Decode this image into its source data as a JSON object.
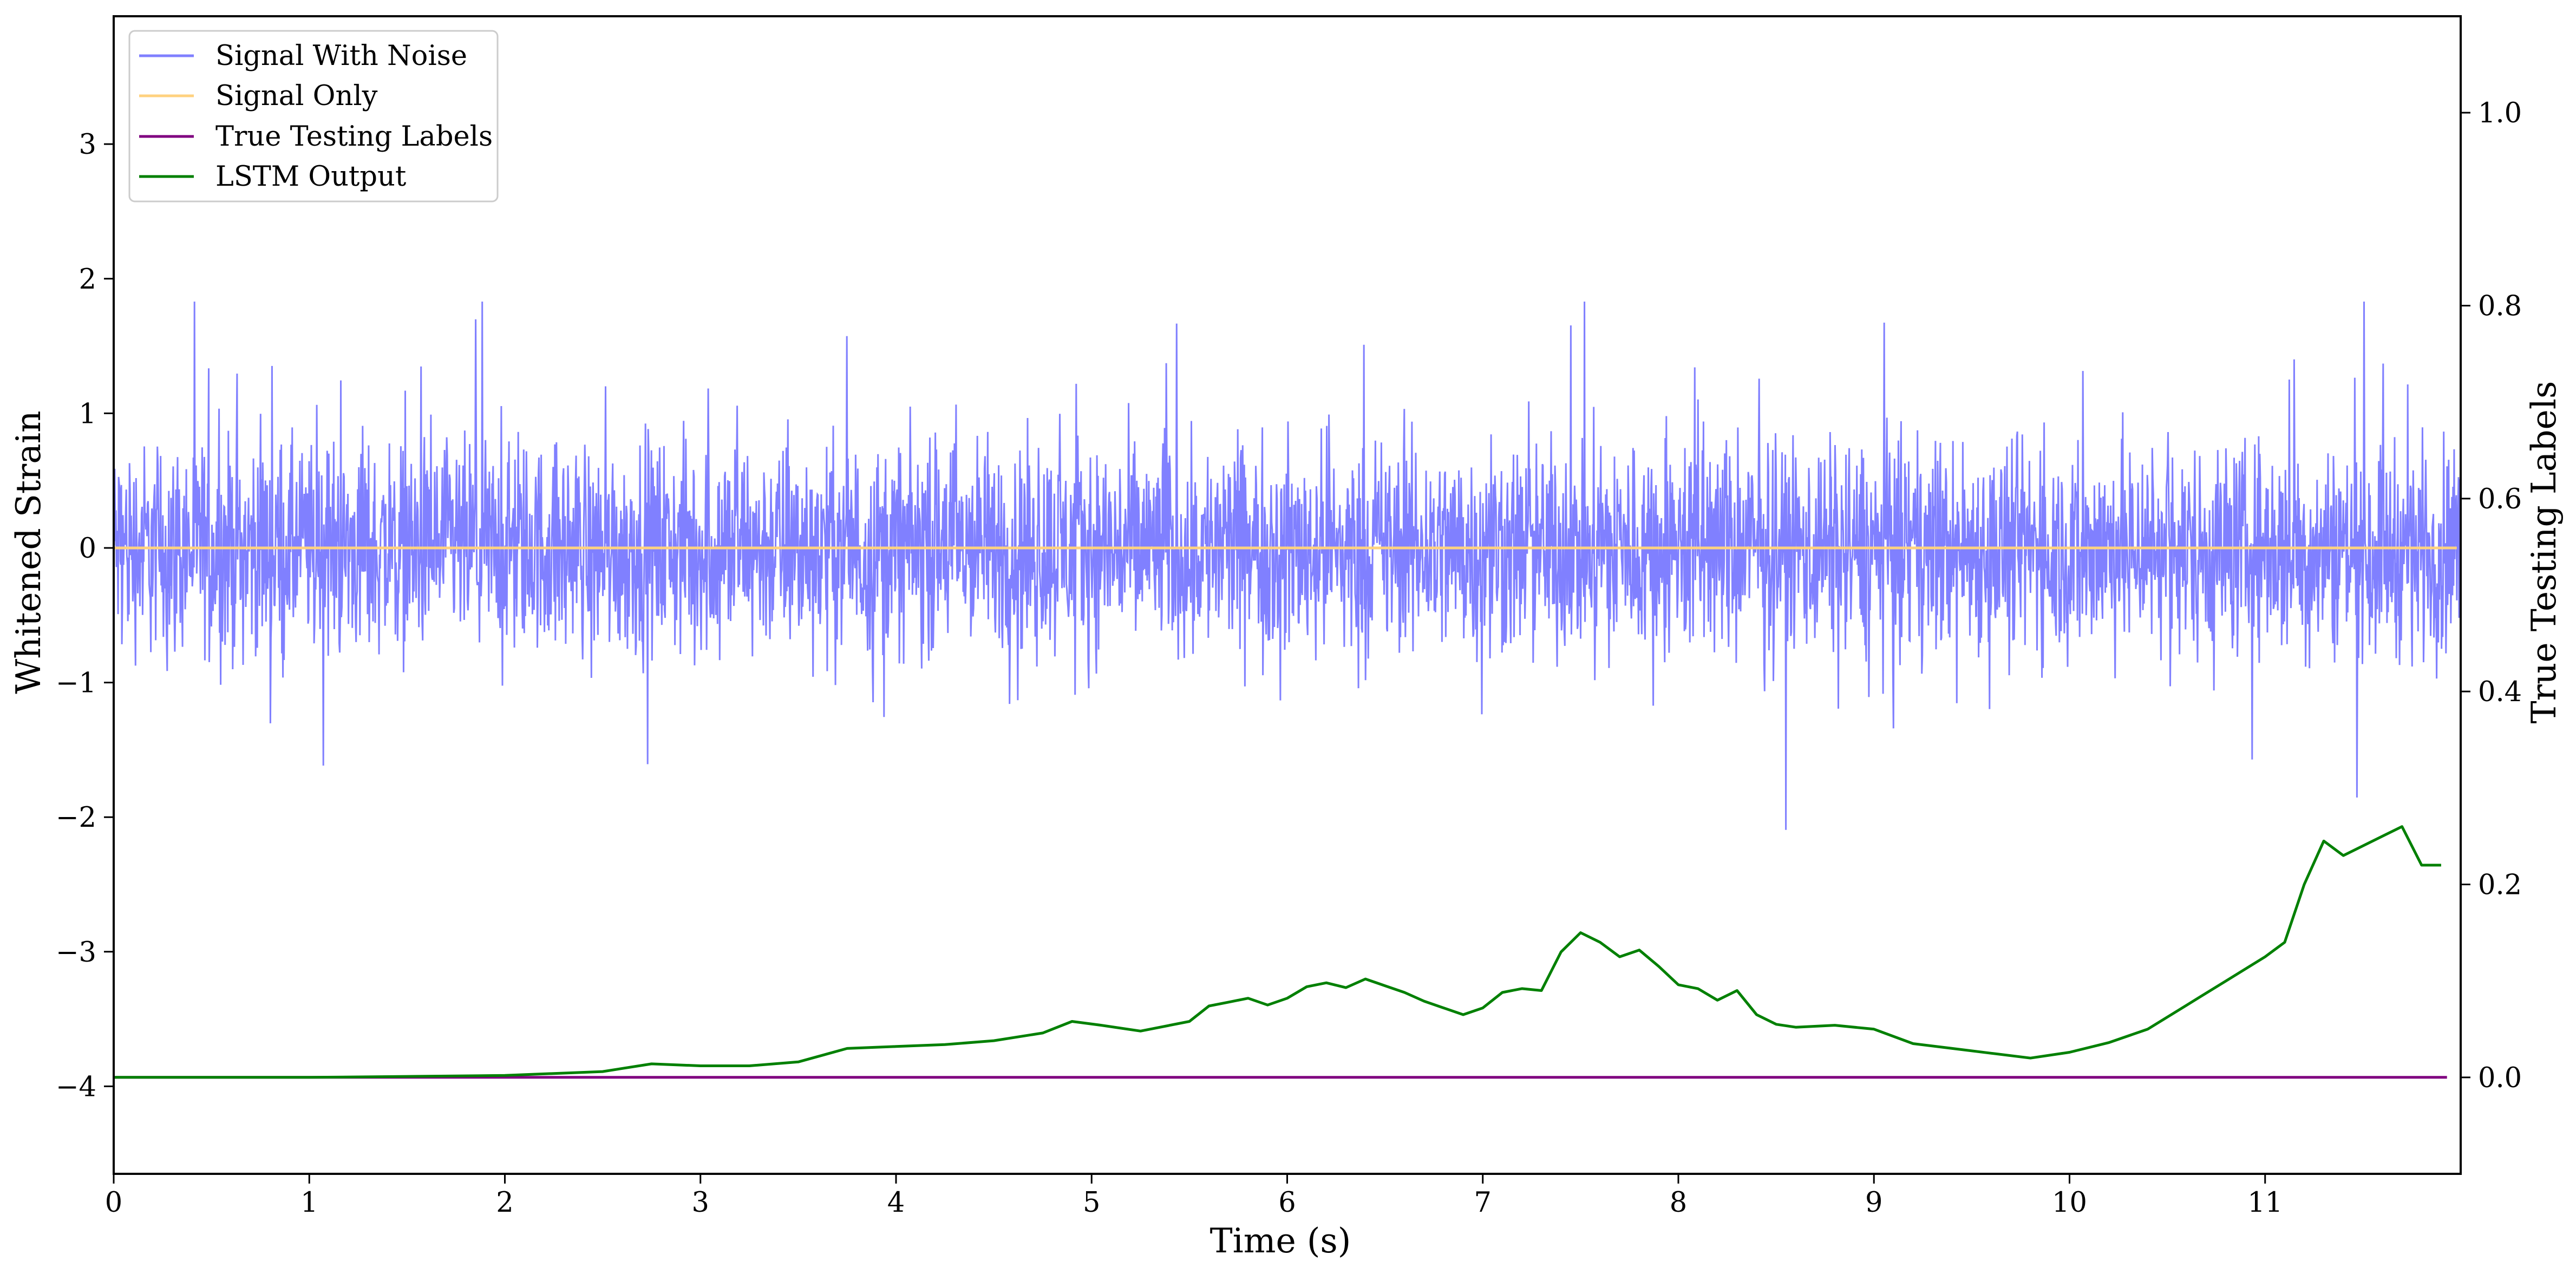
{
  "chart_data": {
    "type": "line",
    "xlabel": "Time (s)",
    "ylabel": "Whitened Strain",
    "y2label": "True Testing Labels",
    "xlim": [
      0,
      12
    ],
    "ylim": [
      -4.65,
      3.95
    ],
    "y2lim": [
      -0.1,
      1.1
    ],
    "x_ticks": [
      0,
      1,
      2,
      3,
      4,
      5,
      6,
      7,
      8,
      9,
      10,
      11
    ],
    "x_tick_labels": [
      "0",
      "1",
      "2",
      "3",
      "4",
      "5",
      "6",
      "7",
      "8",
      "9",
      "10",
      "11"
    ],
    "y_ticks": [
      3,
      2,
      1,
      0,
      -1,
      -2,
      -3,
      -4
    ],
    "y_tick_labels": [
      "3",
      "2",
      "1",
      "0",
      "−1",
      "−2",
      "−3",
      "−4"
    ],
    "y2_ticks": [
      1.0,
      0.8,
      0.6,
      0.4,
      0.2,
      0.0
    ],
    "y2_tick_labels": [
      "1.0",
      "0.8",
      "0.6",
      "0.4",
      "0.2",
      "0.0"
    ],
    "grid": false,
    "legend_position": "top-left",
    "series": [
      {
        "name": "Signal With Noise",
        "axis": "left",
        "color": "#8080ff",
        "style": "noise",
        "typical_range": [
          -1.0,
          1.0
        ],
        "max_value": 1.83,
        "min_value": -2.15
      },
      {
        "name": "Signal Only",
        "axis": "left",
        "color": "#ffd27f",
        "x": [
          0,
          11.98
        ],
        "values": [
          0,
          0
        ]
      },
      {
        "name": "True Testing Labels",
        "axis": "right",
        "color": "#800080",
        "x": [
          0,
          11.93
        ],
        "values": [
          0,
          0
        ]
      },
      {
        "name": "LSTM Output",
        "axis": "right",
        "color": "#008000",
        "x": [
          0,
          1.0,
          1.5,
          2.0,
          2.5,
          2.75,
          3.0,
          3.25,
          3.5,
          3.75,
          4.0,
          4.25,
          4.5,
          4.75,
          4.9,
          5.05,
          5.25,
          5.5,
          5.6,
          5.7,
          5.8,
          5.9,
          6.0,
          6.1,
          6.2,
          6.3,
          6.4,
          6.5,
          6.6,
          6.7,
          6.8,
          6.9,
          7.0,
          7.1,
          7.2,
          7.3,
          7.4,
          7.5,
          7.6,
          7.7,
          7.8,
          7.9,
          8.0,
          8.1,
          8.2,
          8.3,
          8.4,
          8.5,
          8.6,
          8.8,
          9.0,
          9.2,
          9.4,
          9.6,
          9.8,
          10.0,
          10.2,
          10.4,
          10.6,
          10.8,
          11.0,
          11.1,
          11.2,
          11.3,
          11.4,
          11.5,
          11.6,
          11.7,
          11.8,
          11.9
        ],
        "values": [
          0.0,
          0.0,
          0.001,
          0.002,
          0.006,
          0.014,
          0.012,
          0.012,
          0.016,
          0.03,
          0.032,
          0.034,
          0.038,
          0.046,
          0.058,
          0.054,
          0.048,
          0.058,
          0.074,
          0.078,
          0.082,
          0.075,
          0.082,
          0.094,
          0.098,
          0.093,
          0.102,
          0.095,
          0.088,
          0.079,
          0.072,
          0.065,
          0.072,
          0.088,
          0.092,
          0.09,
          0.13,
          0.15,
          0.14,
          0.125,
          0.132,
          0.115,
          0.096,
          0.092,
          0.08,
          0.09,
          0.065,
          0.055,
          0.052,
          0.054,
          0.05,
          0.035,
          0.03,
          0.025,
          0.02,
          0.026,
          0.036,
          0.05,
          0.075,
          0.1,
          0.125,
          0.14,
          0.2,
          0.245,
          0.23,
          0.24,
          0.25,
          0.26,
          0.22,
          0.22
        ]
      }
    ]
  }
}
